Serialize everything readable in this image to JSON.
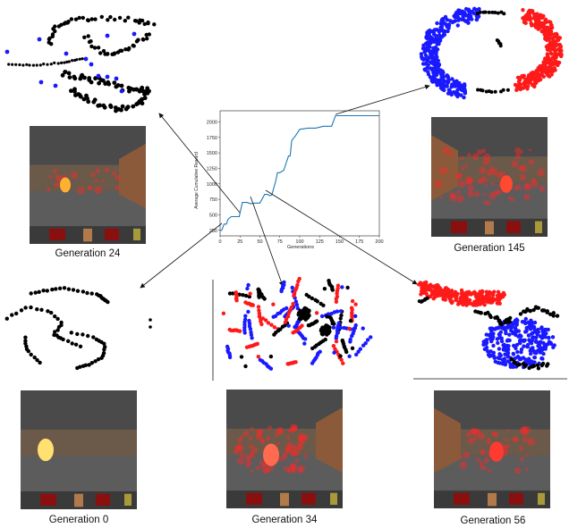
{
  "labels": {
    "gen24": "Generation 24",
    "gen145": "Generation 145",
    "gen0": "Generation 0",
    "gen34": "Generation 34",
    "gen56": "Generation 56"
  },
  "colors": {
    "line": "#1f77b4",
    "red": "#ff1a1a",
    "blue": "#1a1aff",
    "black": "#000000",
    "wall": "#6b5a4a",
    "brick": "#8a5a3a",
    "floor": "#5c5c5c",
    "ceiling": "#4a4a4a"
  },
  "chart_data": {
    "type": "line",
    "title": "",
    "xlabel": "Generations",
    "ylabel": "Average Cumulative Reward",
    "xlim": [
      0,
      200
    ],
    "ylim": [
      160,
      2180
    ],
    "xticks": [
      "0",
      "25",
      "50",
      "75",
      "100",
      "125",
      "150",
      "175",
      "200"
    ],
    "yticks": [
      "250",
      "500",
      "750",
      "1000",
      "1250",
      "1500",
      "1750",
      "2000"
    ],
    "grid": false,
    "series": [
      {
        "x": [
          0,
          2,
          5,
          8,
          10,
          14,
          18,
          24,
          28,
          34,
          38,
          44,
          50,
          56,
          60,
          62,
          65,
          70,
          72,
          75,
          80,
          82,
          86,
          88,
          90,
          95,
          100,
          110,
          120,
          130,
          140,
          145,
          150,
          160,
          170,
          180,
          190,
          200
        ],
        "y": [
          250,
          250,
          350,
          350,
          430,
          470,
          470,
          470,
          700,
          700,
          680,
          690,
          690,
          830,
          830,
          810,
          820,
          1050,
          1180,
          1180,
          1220,
          1300,
          1450,
          1450,
          1700,
          1780,
          1880,
          1900,
          1900,
          1930,
          1930,
          2100,
          2100,
          2100,
          2100,
          2100,
          2100,
          2100
        ]
      }
    ]
  }
}
